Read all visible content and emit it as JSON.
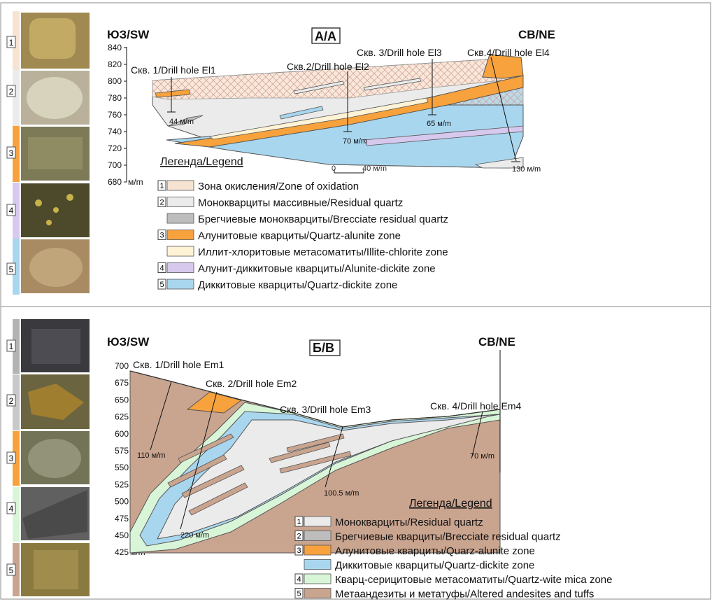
{
  "top": {
    "left_dir": "ЮЗ/SW",
    "right_dir": "СВ/NE",
    "title": "А/А",
    "y_ticks": [
      "840",
      "820",
      "800",
      "780",
      "760",
      "740",
      "720",
      "700",
      "680"
    ],
    "y_unit": "м/m",
    "holes": [
      {
        "label": "Скв. 1/Drill hole El1",
        "depth": "44 м/m"
      },
      {
        "label": "Скв.2/Drill hole El2",
        "depth": "70 м/m"
      },
      {
        "label": "Скв. 3/Drill hole El3",
        "depth": "65 м/m"
      },
      {
        "label": "Скв.4/Drill hole El4",
        "depth": "130 м/m"
      }
    ],
    "scale": {
      "start": "0",
      "end": "40 м/m"
    },
    "legend_title": "Легенда/Legend",
    "legend": [
      {
        "num": "1",
        "text": "Зона окисления/Zone of oxidation",
        "color": "#f6e3d2"
      },
      {
        "num": "2",
        "text": "Монокварциты массивные/Residual quartz",
        "color": "#ebebeb"
      },
      {
        "num": "",
        "text": "Брегчиевые монокварциты/Brecciate residual quartz",
        "color": "#bdbdbd"
      },
      {
        "num": "3",
        "text": "Алунитовые кварциты/Quartz-alunite zone",
        "color": "#f7a23c"
      },
      {
        "num": "",
        "text": "Иллит-хлоритовые метасоматиты/Illite-chlorite zone",
        "color": "#fff3d6"
      },
      {
        "num": "4",
        "text": "Алунит-диккитовые кварциты/Alunite-dickite zone",
        "color": "#d7c8ee"
      },
      {
        "num": "5",
        "text": "Диккитовые кварциты/Quartz-dickite zone",
        "color": "#a9d6ef"
      }
    ],
    "photos": [
      {
        "num": "1",
        "color": "#f6e3d2"
      },
      {
        "num": "2",
        "color": "#ebebeb"
      },
      {
        "num": "3",
        "color": "#f7a23c"
      },
      {
        "num": "4",
        "color": "#d7c8ee"
      },
      {
        "num": "5",
        "color": "#a9d6ef"
      }
    ]
  },
  "bottom": {
    "left_dir": "ЮЗ/SW",
    "right_dir": "СВ/NE",
    "title": "Б/В",
    "y_ticks": [
      "700",
      "675",
      "650",
      "625",
      "600",
      "575",
      "550",
      "525",
      "500",
      "475",
      "450",
      "425"
    ],
    "y_unit": "м/m",
    "holes": [
      {
        "label": "Скв. 1/Drill hole Em1",
        "depth": "110 м/m"
      },
      {
        "label": "Скв. 2/Drill hole Em2",
        "depth": "220 м/m"
      },
      {
        "label": "Скв. 3/Drill hole Em3",
        "depth": "100.5 м/m"
      },
      {
        "label": "Скв. 4/Drill hole Em4",
        "depth": "70 м/m"
      }
    ],
    "legend_title": "Легенда/Legend",
    "legend": [
      {
        "num": "1",
        "text": "Монокварциты/Residual quartz",
        "color": "#ebebeb"
      },
      {
        "num": "2",
        "text": "Брегчиевые кварциты/Brecciate residual quartz",
        "color": "#bdbdbd"
      },
      {
        "num": "3",
        "text": "Алунитовые кварциты/Quarz-alunite zone",
        "color": "#f7a23c"
      },
      {
        "num": "",
        "text": "Диккитовые кварциты/Quartz-dickite zone",
        "color": "#a9d6ef"
      },
      {
        "num": "4",
        "text": "Кварц-серицитовые метасоматиты/Quartz-wite mica zone",
        "color": "#d8f5d8"
      },
      {
        "num": "5",
        "text": "Метаандезиты и метатуфы/Altered andesites and tuffs",
        "color": "#c9a48f"
      }
    ],
    "photos": [
      {
        "num": "1",
        "color": "#b3b3b3"
      },
      {
        "num": "2",
        "color": "#c8c8c8"
      },
      {
        "num": "3",
        "color": "#f7a23c"
      },
      {
        "num": "4",
        "color": "#d8f5d8"
      },
      {
        "num": "5",
        "color": "#c9a48f"
      }
    ]
  }
}
